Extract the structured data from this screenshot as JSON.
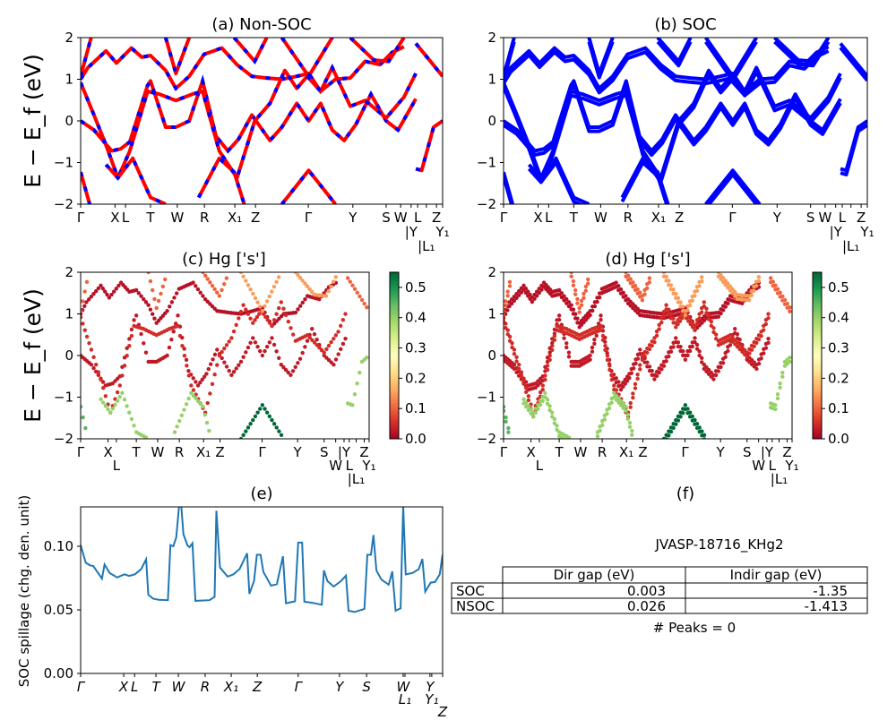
{
  "chart_data": [
    {
      "type": "line",
      "title": "(a) Non-SOC",
      "ylabel": "E − E_f (eV)",
      "ylim": [
        -2,
        2
      ],
      "yticks": [
        "2",
        "1",
        "0",
        "−1",
        "−2"
      ],
      "xticks": [
        {
          "label": "Γ",
          "k": 0
        },
        {
          "label": "X",
          "k": 9.5
        },
        {
          "label": "L",
          "k": 12.4
        },
        {
          "label": "T",
          "k": 19.3
        },
        {
          "label": "W",
          "k": 26.7
        },
        {
          "label": "R",
          "k": 34.2
        },
        {
          "label": "X₁",
          "k": 42.6
        },
        {
          "label": "Z",
          "k": 48.3
        },
        {
          "label": "Γ",
          "k": 62.9
        },
        {
          "label": "Y",
          "k": 75.2
        },
        {
          "label": "S",
          "k": 84.4
        },
        {
          "label": "W",
          "k": 88.4
        },
        {
          "label": "|Y",
          "k": 91.3
        },
        {
          "label": "L",
          "k": 93.1
        },
        {
          "label": "|L₁",
          "k": 95.5
        },
        {
          "label": "Z",
          "k": 98.3
        },
        {
          "label": "Y₁",
          "k": 100
        }
      ],
      "colors": {
        "line": "#ff0000",
        "dash": "#0000ff"
      },
      "bands": [
        {
          "hg_s": 0.03,
          "points": [
            [
              0,
              0
            ],
            [
              3.7,
              -0.22
            ],
            [
              8.6,
              -0.72
            ],
            [
              11.1,
              -0.67
            ],
            [
              13.6,
              -0.5
            ],
            [
              18.5,
              0.85
            ],
            [
              19.3,
              0.96
            ],
            [
              23.5,
              -0.15
            ],
            [
              26.3,
              -0.15
            ],
            [
              30,
              0
            ],
            [
              33.7,
              0.96
            ],
            [
              37.4,
              -0.37
            ],
            [
              40.7,
              -0.72
            ],
            [
              43.6,
              -0.44
            ],
            [
              47.3,
              0.14
            ],
            [
              52.3,
              -0.47
            ],
            [
              55.6,
              -0.15
            ],
            [
              59.7,
              0.42
            ],
            [
              63,
              0
            ],
            [
              66.3,
              0.42
            ],
            [
              69.5,
              -0.22
            ],
            [
              72.8,
              -0.47
            ],
            [
              76.1,
              -0.08
            ],
            [
              80.2,
              0.64
            ],
            [
              84.4,
              0
            ],
            [
              87.7,
              -0.22
            ],
            [
              92.6,
              0.53
            ]
          ]
        },
        {
          "hg_s": 0.02,
          "points": [
            [
              0,
              1.0
            ],
            [
              2,
              1.28
            ],
            [
              7,
              1.68
            ],
            [
              9.9,
              1.39
            ],
            [
              14,
              1.75
            ],
            [
              16.9,
              1.53
            ],
            [
              19.3,
              1.57
            ],
            [
              23.5,
              1.21
            ],
            [
              26.3,
              0.78
            ],
            [
              30,
              1.07
            ],
            [
              34.1,
              1.6
            ],
            [
              39,
              1.75
            ],
            [
              43.2,
              1.35
            ],
            [
              47.3,
              1.07
            ],
            [
              51.4,
              1.03
            ],
            [
              55.6,
              1.0
            ],
            [
              59.7,
              1.07
            ],
            [
              63,
              1.14
            ],
            [
              66.3,
              0.71
            ],
            [
              70.4,
              1.0
            ],
            [
              74.5,
              1.03
            ],
            [
              78.6,
              1.43
            ],
            [
              82.7,
              1.35
            ],
            [
              86,
              1.64
            ],
            [
              89.3,
              1.78
            ]
          ]
        },
        {
          "hg_s": 0.05,
          "points": [
            [
              0,
              0.92
            ],
            [
              3.7,
              0.14
            ],
            [
              7,
              -0.58
            ],
            [
              10.3,
              -1.37
            ],
            [
              13.6,
              -0.72
            ],
            [
              18.5,
              0.71
            ],
            [
              21.8,
              0.64
            ],
            [
              26.3,
              0.49
            ],
            [
              30.8,
              0.64
            ],
            [
              33.7,
              0.71
            ],
            [
              38.3,
              -0.72
            ],
            [
              43.2,
              -1.37
            ],
            [
              48.1,
              0
            ],
            [
              52.3,
              0.42
            ],
            [
              56.4,
              1.21
            ],
            [
              59.7,
              0.78
            ],
            [
              62.6,
              1.07
            ],
            [
              66.3,
              0.71
            ],
            [
              69.5,
              1.28
            ],
            [
              74.5,
              0.35
            ],
            [
              78.6,
              0.49
            ],
            [
              84.4,
              0.07
            ],
            [
              89.3,
              0.57
            ],
            [
              92.6,
              1.14
            ]
          ]
        },
        {
          "hg_s": 0.45,
          "points": [
            [
              0,
              -1.23
            ],
            [
              2.5,
              -2
            ]
          ]
        },
        {
          "hg_s": 0.4,
          "points": [
            [
              7,
              -1.05
            ],
            [
              10.3,
              -1.37
            ],
            [
              14.4,
              -0.9
            ],
            [
              19.3,
              -1.84
            ],
            [
              23.5,
              -2
            ]
          ]
        },
        {
          "hg_s": 0.4,
          "points": [
            [
              32.6,
              -1.84
            ],
            [
              38.3,
              -0.9
            ],
            [
              42.4,
              -1.23
            ],
            [
              45.2,
              -2
            ]
          ]
        },
        {
          "hg_s": 0.55,
          "points": [
            [
              55.6,
              -2
            ],
            [
              63,
              -1.19
            ],
            [
              70.4,
              -2
            ]
          ]
        },
        {
          "hg_s": 0.4,
          "points": [
            [
              92.6,
              -1.15
            ],
            [
              94.2,
              -1.19
            ],
            [
              97.5,
              -0.15
            ],
            [
              100,
              0
            ]
          ]
        },
        {
          "hg_s": 0.1,
          "points": [
            [
              0,
              1.07
            ],
            [
              2.9,
              2
            ]
          ]
        },
        {
          "hg_s": 0.1,
          "points": [
            [
              23.5,
              2
            ],
            [
              26.3,
              1.14
            ],
            [
              30,
              2
            ]
          ]
        },
        {
          "hg_s": 0.1,
          "points": [
            [
              42.4,
              2
            ],
            [
              48.1,
              1.43
            ],
            [
              51.4,
              2
            ]
          ]
        },
        {
          "hg_s": 0.15,
          "points": [
            [
              55.6,
              2
            ],
            [
              63,
              1.07
            ],
            [
              69.5,
              2
            ]
          ]
        },
        {
          "hg_s": 0.15,
          "points": [
            [
              74.5,
              2
            ],
            [
              81,
              1.46
            ],
            [
              85.1,
              1.43
            ],
            [
              89.3,
              2
            ]
          ]
        },
        {
          "hg_s": 0.1,
          "points": [
            [
              92.6,
              1.86
            ],
            [
              100,
              1.07
            ]
          ]
        }
      ]
    },
    {
      "type": "line",
      "title": "(b) SOC",
      "ylim": [
        -2,
        2
      ],
      "colors": {
        "line": "#0000ff"
      }
    },
    {
      "type": "scatter",
      "title": "(c)  Hg ['s']",
      "ylabel": "E − E_f (eV)",
      "ylim": [
        -2,
        2
      ],
      "colorbar": {
        "range": [
          0,
          0.55
        ],
        "ticks": [
          "0.0",
          "0.1",
          "0.2",
          "0.3",
          "0.4",
          "0.5"
        ],
        "colormap": [
          "#a50026",
          "#d73027",
          "#f46d43",
          "#fdae61",
          "#fee08b",
          "#ffffbf",
          "#d9ef8b",
          "#a6d96a",
          "#66bd63",
          "#1a9850",
          "#006837"
        ]
      }
    },
    {
      "type": "scatter",
      "title": "(d) Hg ['s']",
      "ylim": [
        -2,
        2
      ]
    },
    {
      "type": "line",
      "title": "(e)",
      "ylabel": "SOC spillage (chg. den. unit)",
      "ylim": [
        0,
        0.131
      ],
      "yticks": [
        "0.00",
        "0.05",
        "0.10"
      ],
      "color": "#1f77b4",
      "xticks": [
        {
          "label": "Γ",
          "k": 0
        },
        {
          "label": "X",
          "k": 11.9
        },
        {
          "label": "L",
          "k": 14.9
        },
        {
          "label": "T",
          "k": 20.8
        },
        {
          "label": "W",
          "k": 27.0
        },
        {
          "label": "R",
          "k": 34.4
        },
        {
          "label": "X₁",
          "k": 41.6
        },
        {
          "label": "Z",
          "k": 48.8
        },
        {
          "label": "Γ",
          "k": 60.1
        },
        {
          "label": "Y",
          "k": 71.5
        },
        {
          "label": "S",
          "k": 79.0
        },
        {
          "label": "W",
          "k": 89.1
        },
        {
          "label": "L₁",
          "k": 89.6
        },
        {
          "label": "Y",
          "k": 96.5
        },
        {
          "label": "Y₁",
          "k": 97.0
        },
        {
          "label": "Z",
          "k": 100
        }
      ],
      "points": [
        [
          0,
          0.101
        ],
        [
          1.4,
          0.087
        ],
        [
          2.6,
          0.085
        ],
        [
          3.5,
          0.0845
        ],
        [
          5.9,
          0.0745
        ],
        [
          6.6,
          0.0857
        ],
        [
          8.0,
          0.079
        ],
        [
          10.1,
          0.0755
        ],
        [
          12.1,
          0.078
        ],
        [
          13.4,
          0.0767
        ],
        [
          15.0,
          0.078
        ],
        [
          16.7,
          0.082
        ],
        [
          18.1,
          0.0898
        ],
        [
          18.7,
          0.062
        ],
        [
          20.0,
          0.0588
        ],
        [
          21.6,
          0.0579
        ],
        [
          24.1,
          0.0576
        ],
        [
          24.8,
          0.101
        ],
        [
          25.6,
          0.1
        ],
        [
          26.4,
          0.107
        ],
        [
          27.2,
          0.132
        ],
        [
          27.8,
          0.132
        ],
        [
          28.4,
          0.1095
        ],
        [
          29.5,
          0.1007
        ],
        [
          30.1,
          0.0993
        ],
        [
          30.9,
          0.1024
        ],
        [
          31.7,
          0.0571
        ],
        [
          35.6,
          0.0576
        ],
        [
          37.0,
          0.0602
        ],
        [
          37.5,
          0.128
        ],
        [
          38.5,
          0.0833
        ],
        [
          40.6,
          0.0762
        ],
        [
          42.2,
          0.0779
        ],
        [
          43.9,
          0.0821
        ],
        [
          46.0,
          0.0945
        ],
        [
          46.6,
          0.0626
        ],
        [
          47.9,
          0.0726
        ],
        [
          48.7,
          0.0933
        ],
        [
          49.7,
          0.0933
        ],
        [
          50.5,
          0.0798
        ],
        [
          52.6,
          0.069
        ],
        [
          54.2,
          0.0702
        ],
        [
          55.9,
          0.0921
        ],
        [
          56.7,
          0.0552
        ],
        [
          59.2,
          0.0567
        ],
        [
          60.1,
          0.1029
        ],
        [
          61.2,
          0.1029
        ],
        [
          61.8,
          0.0564
        ],
        [
          64.1,
          0.0555
        ],
        [
          66.6,
          0.054
        ],
        [
          67.2,
          0.081
        ],
        [
          68.2,
          0.0726
        ],
        [
          69.9,
          0.0683
        ],
        [
          71.9,
          0.0726
        ],
        [
          73.3,
          0.0769
        ],
        [
          74.0,
          0.0493
        ],
        [
          75.7,
          0.0483
        ],
        [
          78.4,
          0.0507
        ],
        [
          79.2,
          0.0933
        ],
        [
          80.2,
          0.0933
        ],
        [
          80.9,
          0.1088
        ],
        [
          81.7,
          0.081
        ],
        [
          83.1,
          0.0738
        ],
        [
          85.1,
          0.0698
        ],
        [
          86.1,
          0.0802
        ],
        [
          87.0,
          0.0493
        ],
        [
          88.4,
          0.0512
        ],
        [
          89.1,
          0.132
        ],
        [
          89.8,
          0.0779
        ],
        [
          91.7,
          0.079
        ],
        [
          93.4,
          0.082
        ],
        [
          94.4,
          0.09
        ],
        [
          95.2,
          0.0643
        ],
        [
          96.7,
          0.0714
        ],
        [
          97.9,
          0.0719
        ],
        [
          99.2,
          0.0779
        ],
        [
          100,
          0.0936
        ]
      ]
    },
    {
      "type": "table",
      "title": "(f)",
      "caption": "JVASP-18716_KHg2",
      "columns": [
        "Dir gap (eV)",
        "Indir gap (eV)"
      ],
      "rows": [
        {
          "label": "SOC",
          "values": [
            "0.003",
            "-1.35"
          ]
        },
        {
          "label": "NSOC",
          "values": [
            "0.026",
            "-1.413"
          ]
        }
      ],
      "footer": "# Peaks = 0"
    }
  ]
}
